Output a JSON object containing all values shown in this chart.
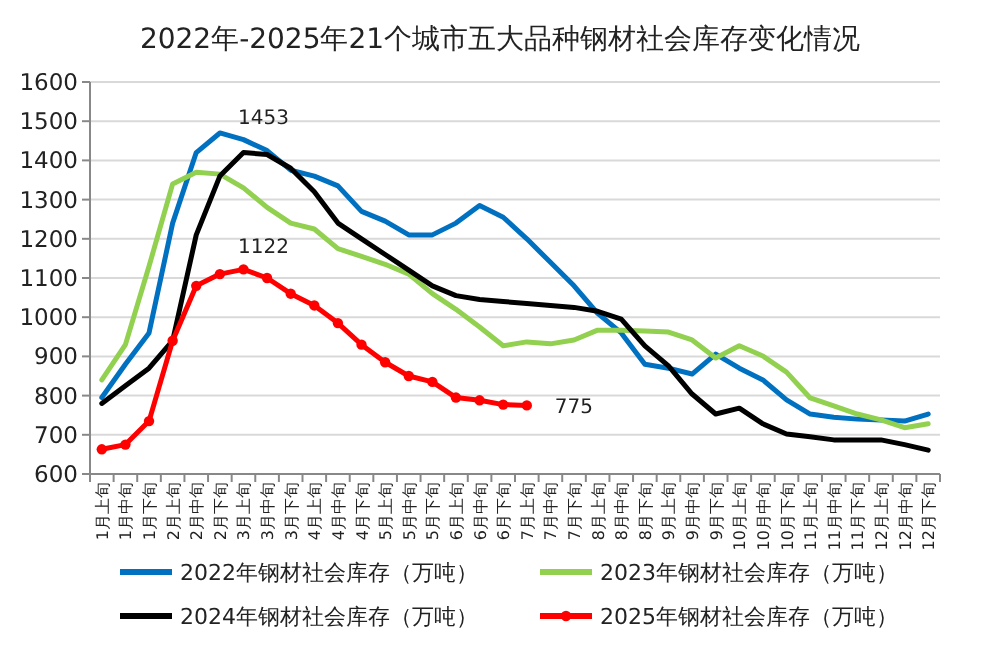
{
  "chart_data": {
    "type": "line",
    "title": "2022年-2025年21个城市五大品种钢材社会库存变化情况",
    "categories": [
      "1月上旬",
      "1月中旬",
      "1月下旬",
      "2月上旬",
      "2月中旬",
      "2月下旬",
      "3月上旬",
      "3月中旬",
      "3月下旬",
      "4月上旬",
      "4月中旬",
      "4月下旬",
      "5月上旬",
      "5月中旬",
      "5月下旬",
      "6月上旬",
      "6月中旬",
      "6月下旬",
      "7月上旬",
      "7月中旬",
      "7月下旬",
      "8月上旬",
      "8月中旬",
      "8月下旬",
      "9月上旬",
      "9月中旬",
      "9月下旬",
      "10月上旬",
      "10月中旬",
      "10月下旬",
      "11月上旬",
      "11月中旬",
      "11月下旬",
      "12月上旬",
      "12月中旬",
      "12月下旬"
    ],
    "series": [
      {
        "name": "2022年钢材社会库存（万吨）",
        "color": "#0070c0",
        "marker": "none",
        "values": [
          795,
          880,
          960,
          1240,
          1420,
          1470,
          1453,
          1425,
          1375,
          1360,
          1335,
          1270,
          1245,
          1210,
          1210,
          1240,
          1285,
          1255,
          1200,
          1140,
          1080,
          1010,
          960,
          880,
          870,
          855,
          906,
          870,
          840,
          789,
          753,
          745,
          740,
          738,
          735,
          753
        ]
      },
      {
        "name": "2023年钢材社会库存（万吨）",
        "color": "#92d050",
        "marker": "none",
        "values": [
          840,
          930,
          1130,
          1340,
          1370,
          1365,
          1330,
          1280,
          1240,
          1225,
          1175,
          1155,
          1135,
          1110,
          1060,
          1020,
          975,
          927,
          937,
          932,
          942,
          967,
          967,
          965,
          962,
          942,
          896,
          927,
          901,
          860,
          794,
          774,
          753,
          738,
          718,
          728
        ]
      },
      {
        "name": "2024年钢材社会库存（万吨）",
        "color": "#000000",
        "marker": "none",
        "values": [
          780,
          825,
          870,
          940,
          1210,
          1360,
          1420,
          1415,
          1380,
          1320,
          1240,
          1200,
          1160,
          1120,
          1080,
          1055,
          1045,
          1040,
          1035,
          1030,
          1025,
          1015,
          995,
          927,
          876,
          804,
          753,
          768,
          728,
          702,
          695,
          687,
          687,
          687,
          675,
          661
        ]
      },
      {
        "name": "2025年钢材社会库存（万吨）",
        "color": "#ff0000",
        "marker": "circle",
        "values": [
          663,
          675,
          735,
          940,
          1080,
          1110,
          1122,
          1100,
          1060,
          1030,
          985,
          930,
          885,
          850,
          835,
          795,
          788,
          777,
          775,
          null,
          null,
          null,
          null,
          null,
          null,
          null,
          null,
          null,
          null,
          null,
          null,
          null,
          null,
          null,
          null,
          null
        ]
      }
    ],
    "annotations": [
      {
        "text": "1453",
        "x": "3月上旬",
        "y": 1453
      },
      {
        "text": "1122",
        "x": "3月上旬",
        "y": 1122
      },
      {
        "text": "775",
        "x": "7月上旬",
        "y": 775
      }
    ],
    "ylim": [
      600,
      1600
    ],
    "yticks": [
      600,
      700,
      800,
      900,
      1000,
      1100,
      1200,
      1300,
      1400,
      1500,
      1600
    ],
    "grid": "y",
    "legend": "bottom"
  }
}
